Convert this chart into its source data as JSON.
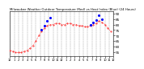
{
  "title": "Milwaukee Weather Outdoor Temperature (Red) vs Heat Index (Blue) (24 Hours)",
  "title_fontsize": 2.8,
  "background_color": "#ffffff",
  "plot_bg_color": "#ffffff",
  "grid_color": "#888888",
  "ylim": [
    52,
    92
  ],
  "yticks": [
    55,
    60,
    65,
    70,
    75,
    80,
    85,
    90
  ],
  "ytick_labels": [
    "55",
    "60",
    "65",
    "70",
    "75",
    "80",
    "85",
    "90"
  ],
  "ytick_fontsize": 3.0,
  "xtick_fontsize": 2.6,
  "time_labels": [
    "12",
    "",
    "",
    "1",
    "",
    "",
    "2",
    "",
    "",
    "3",
    "",
    "",
    "4",
    "",
    "",
    "5",
    "",
    "",
    "6",
    "",
    "",
    "7",
    "",
    "",
    "8",
    "",
    "",
    "9",
    "",
    "",
    "10",
    "",
    "",
    "11",
    "",
    "",
    "12",
    "",
    "",
    "1",
    "",
    "",
    "2",
    "",
    "",
    "3",
    "",
    "",
    "4",
    "",
    "",
    "5",
    "",
    "",
    "6",
    "",
    "",
    "7",
    "",
    "",
    "8",
    "",
    "",
    "9",
    "",
    "",
    "10",
    "",
    "",
    "11",
    "",
    "",
    "12"
  ],
  "red_x": [
    0,
    2,
    4,
    6,
    8,
    10,
    12,
    14,
    16,
    18,
    20,
    22,
    24,
    26,
    28,
    30,
    32,
    34,
    36,
    38,
    40,
    42,
    44,
    46,
    48,
    50,
    52,
    54,
    56,
    58,
    60,
    62,
    64,
    66,
    68,
    70
  ],
  "red_y": [
    57,
    56,
    55,
    55,
    55,
    56,
    57,
    59,
    61,
    65,
    70,
    74,
    77,
    79,
    80,
    80,
    81,
    81,
    80,
    80,
    81,
    81,
    80,
    80,
    79,
    79,
    78,
    78,
    79,
    80,
    81,
    83,
    82,
    80,
    77,
    74
  ],
  "blue_x": [
    22,
    24,
    26,
    28,
    56,
    58,
    60,
    62,
    64
  ],
  "blue_y": [
    75,
    79,
    83,
    86,
    80,
    82,
    84,
    88,
    85
  ],
  "red_color": "#ff0000",
  "blue_color": "#0000ff",
  "line_width": 0.5,
  "red_marker_size": 0.8,
  "blue_marker_size": 1.2
}
